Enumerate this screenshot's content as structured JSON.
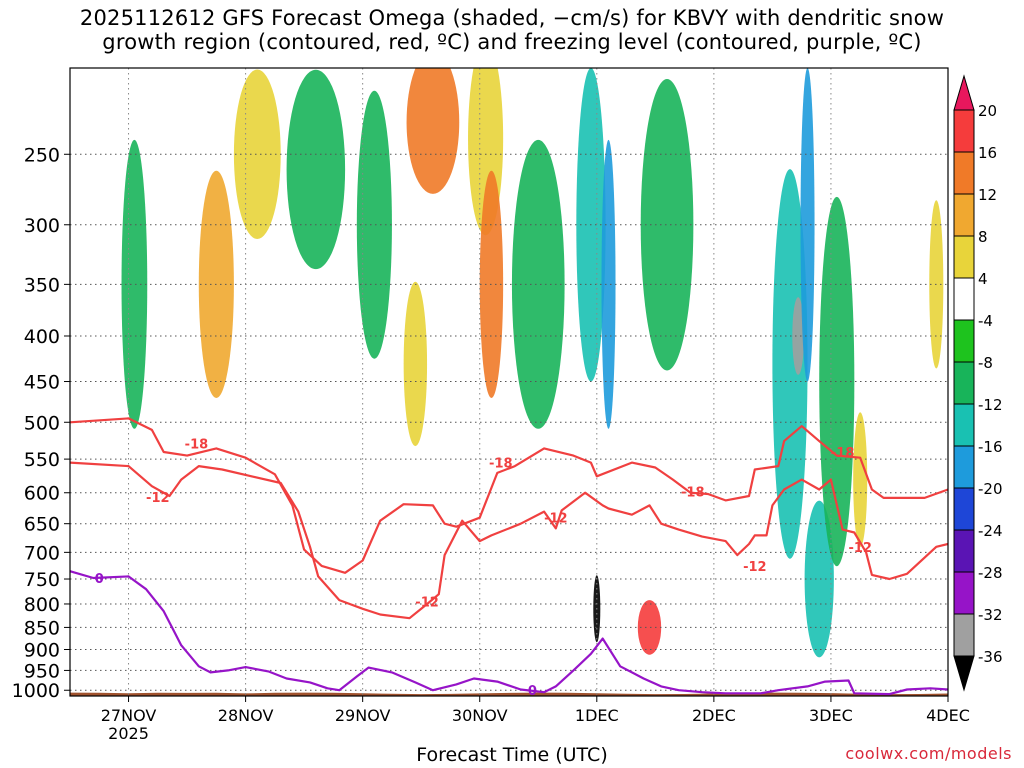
{
  "title_line1": "2025112612 GFS Forecast Omega (shaded, −cm/s) for KBVY with dendritic snow",
  "title_line2": "growth region (contoured, red, ºC) and freezing level (contoured, purple, ºC)",
  "credit": "coolwx.com/models",
  "chart_data": {
    "type": "heatmap",
    "title": "2025112612 GFS Forecast Omega (shaded, −cm/s) for KBVY with dendritic snow growth region (contoured, red, ºC) and freezing level (contoured, purple, ºC)",
    "xlabel": "Forecast Time (UTC)",
    "ylabel": "",
    "x_ticks": [
      "27NOV",
      "28NOV",
      "29NOV",
      "30NOV",
      "1DEC",
      "2DEC",
      "3DEC",
      "4DEC"
    ],
    "x_year_label": "2025",
    "xlim_days": [
      -0.5,
      7.0
    ],
    "y_ticks": [
      250,
      300,
      350,
      400,
      450,
      500,
      550,
      600,
      650,
      700,
      750,
      800,
      850,
      900,
      950,
      1000
    ],
    "ylim_hpa": [
      200,
      1015
    ],
    "y_scale": "pressure",
    "grid": true,
    "colorbar": {
      "tick_labels": [
        "20",
        "16",
        "12",
        "8",
        "4",
        "-4",
        "-8",
        "-12",
        "-16",
        "-20",
        "-24",
        "-28",
        "-32",
        "-36"
      ],
      "colors": [
        "#e8175d",
        "#f53c3c",
        "#f07a28",
        "#f0a830",
        "#e8d43a",
        "#ffffff",
        "#1ec31e",
        "#18b45a",
        "#19c1b2",
        "#1e9bdc",
        "#1e46d7",
        "#5a14b4",
        "#9614c8",
        "#a0a0a0",
        "#000000"
      ]
    },
    "omega_features": [
      {
        "day": 0.05,
        "p": 350,
        "value": -8,
        "width": 0.22,
        "height": 250
      },
      {
        "day": 0.75,
        "p": 350,
        "value": 8,
        "width": 0.3,
        "height": 200
      },
      {
        "day": 1.1,
        "p": 250,
        "value": 4,
        "width": 0.4,
        "height": 120
      },
      {
        "day": 1.6,
        "p": 260,
        "value": -8,
        "width": 0.5,
        "height": 150
      },
      {
        "day": 2.1,
        "p": 300,
        "value": -8,
        "width": 0.3,
        "height": 200
      },
      {
        "day": 2.45,
        "p": 430,
        "value": 4,
        "width": 0.2,
        "height": 180
      },
      {
        "day": 2.6,
        "p": 230,
        "value": 12,
        "width": 0.45,
        "height": 120
      },
      {
        "day": 3.05,
        "p": 240,
        "value": 4,
        "width": 0.3,
        "height": 180
      },
      {
        "day": 3.1,
        "p": 350,
        "value": 12,
        "width": 0.2,
        "height": 200
      },
      {
        "day": 3.5,
        "p": 350,
        "value": -8,
        "width": 0.45,
        "height": 250
      },
      {
        "day": 3.95,
        "p": 300,
        "value": -12,
        "width": 0.25,
        "height": 300
      },
      {
        "day": 4.1,
        "p": 350,
        "value": -16,
        "width": 0.12,
        "height": 250
      },
      {
        "day": 4.0,
        "p": 810,
        "value": -36,
        "width": 0.06,
        "height": 140
      },
      {
        "day": 4.45,
        "p": 850,
        "value": 16,
        "width": 0.2,
        "height": 120
      },
      {
        "day": 4.6,
        "p": 300,
        "value": -8,
        "width": 0.45,
        "height": 250
      },
      {
        "day": 5.65,
        "p": 430,
        "value": -12,
        "width": 0.3,
        "height": 400
      },
      {
        "day": 5.72,
        "p": 400,
        "value": -32,
        "width": 0.1,
        "height": 80
      },
      {
        "day": 5.8,
        "p": 300,
        "value": -16,
        "width": 0.12,
        "height": 300
      },
      {
        "day": 5.9,
        "p": 750,
        "value": -12,
        "width": 0.25,
        "height": 300
      },
      {
        "day": 6.05,
        "p": 450,
        "value": -8,
        "width": 0.3,
        "height": 400
      },
      {
        "day": 6.9,
        "p": 350,
        "value": 4,
        "width": 0.12,
        "height": 150
      },
      {
        "day": 6.25,
        "p": 580,
        "value": 4,
        "width": 0.12,
        "height": 200
      }
    ],
    "series": [
      {
        "name": "-18",
        "color": "#f04040",
        "points": [
          [
            -0.5,
            500
          ],
          [
            0.0,
            495
          ],
          [
            0.2,
            510
          ],
          [
            0.3,
            540
          ],
          [
            0.5,
            545
          ],
          [
            0.75,
            535
          ],
          [
            1.0,
            548
          ],
          [
            1.25,
            572
          ],
          [
            1.4,
            620
          ],
          [
            1.5,
            695
          ],
          [
            1.65,
            725
          ],
          [
            1.85,
            738
          ],
          [
            2.0,
            715
          ],
          [
            2.15,
            645
          ],
          [
            2.35,
            618
          ],
          [
            2.6,
            620
          ],
          [
            2.7,
            650
          ],
          [
            2.8,
            655
          ],
          [
            3.0,
            640
          ],
          [
            3.15,
            570
          ],
          [
            3.3,
            560
          ],
          [
            3.55,
            535
          ],
          [
            3.8,
            545
          ],
          [
            3.95,
            555
          ],
          [
            4.0,
            575
          ],
          [
            4.3,
            555
          ],
          [
            4.5,
            562
          ],
          [
            4.65,
            580
          ],
          [
            4.8,
            600
          ],
          [
            4.95,
            602
          ],
          [
            5.1,
            612
          ],
          [
            5.3,
            605
          ],
          [
            5.35,
            565
          ],
          [
            5.55,
            560
          ],
          [
            5.6,
            525
          ],
          [
            5.75,
            505
          ],
          [
            5.9,
            525
          ],
          [
            6.05,
            545
          ],
          [
            6.25,
            548
          ],
          [
            6.35,
            595
          ],
          [
            6.45,
            608
          ],
          [
            6.8,
            608
          ],
          [
            7.0,
            595
          ]
        ],
        "label_positions": [
          [
            0.58,
            528
          ],
          [
            3.18,
            555
          ],
          [
            4.82,
            598
          ],
          [
            6.1,
            540
          ]
        ]
      },
      {
        "name": "-12",
        "color": "#f04040",
        "points": [
          [
            -0.5,
            555
          ],
          [
            0.0,
            560
          ],
          [
            0.2,
            590
          ],
          [
            0.35,
            605
          ],
          [
            0.45,
            580
          ],
          [
            0.6,
            560
          ],
          [
            0.8,
            565
          ],
          [
            1.05,
            575
          ],
          [
            1.3,
            585
          ],
          [
            1.45,
            630
          ],
          [
            1.55,
            690
          ],
          [
            1.62,
            745
          ],
          [
            1.8,
            792
          ],
          [
            2.0,
            810
          ],
          [
            2.15,
            822
          ],
          [
            2.4,
            830
          ],
          [
            2.55,
            800
          ],
          [
            2.65,
            780
          ],
          [
            2.7,
            705
          ],
          [
            2.85,
            645
          ],
          [
            3.0,
            680
          ],
          [
            3.1,
            670
          ],
          [
            3.35,
            650
          ],
          [
            3.55,
            630
          ],
          [
            3.65,
            658
          ],
          [
            3.7,
            628
          ],
          [
            3.9,
            600
          ],
          [
            4.05,
            620
          ],
          [
            4.1,
            625
          ],
          [
            4.3,
            635
          ],
          [
            4.45,
            620
          ],
          [
            4.55,
            650
          ],
          [
            4.7,
            660
          ],
          [
            4.9,
            672
          ],
          [
            5.1,
            680
          ],
          [
            5.2,
            705
          ],
          [
            5.3,
            685
          ],
          [
            5.35,
            670
          ],
          [
            5.45,
            670
          ],
          [
            5.5,
            620
          ],
          [
            5.6,
            595
          ],
          [
            5.75,
            580
          ],
          [
            5.9,
            595
          ],
          [
            6.0,
            580
          ],
          [
            6.1,
            660
          ],
          [
            6.2,
            665
          ],
          [
            6.3,
            700
          ],
          [
            6.35,
            742
          ],
          [
            6.5,
            750
          ],
          [
            6.65,
            740
          ],
          [
            6.9,
            690
          ],
          [
            7.0,
            685
          ]
        ],
        "label_positions": [
          [
            0.25,
            607
          ],
          [
            2.55,
            795
          ],
          [
            3.65,
            640
          ],
          [
            5.35,
            725
          ],
          [
            6.25,
            690
          ]
        ]
      },
      {
        "name": "0",
        "color": "#9614c8",
        "points": [
          [
            -0.5,
            735
          ],
          [
            -0.3,
            748
          ],
          [
            0.0,
            745
          ],
          [
            0.15,
            770
          ],
          [
            0.3,
            815
          ],
          [
            0.45,
            890
          ],
          [
            0.6,
            940
          ],
          [
            0.7,
            955
          ],
          [
            0.85,
            950
          ],
          [
            1.0,
            942
          ],
          [
            1.2,
            953
          ],
          [
            1.35,
            970
          ],
          [
            1.55,
            980
          ],
          [
            1.7,
            995
          ],
          [
            1.8,
            1000
          ],
          [
            1.95,
            965
          ],
          [
            2.05,
            943
          ],
          [
            2.25,
            955
          ],
          [
            2.45,
            980
          ],
          [
            2.6,
            1000
          ],
          [
            2.8,
            985
          ],
          [
            2.95,
            970
          ],
          [
            3.15,
            978
          ],
          [
            3.35,
            998
          ],
          [
            3.55,
            1005
          ],
          [
            3.65,
            990
          ],
          [
            3.8,
            950
          ],
          [
            3.95,
            910
          ],
          [
            4.05,
            875
          ],
          [
            4.2,
            940
          ],
          [
            4.4,
            970
          ],
          [
            4.55,
            990
          ],
          [
            4.7,
            1000
          ],
          [
            4.9,
            1005
          ],
          [
            5.1,
            1008
          ],
          [
            5.4,
            1008
          ],
          [
            5.55,
            1000
          ],
          [
            5.8,
            990
          ],
          [
            5.95,
            978
          ],
          [
            6.15,
            975
          ],
          [
            6.2,
            1008
          ],
          [
            6.5,
            1010
          ],
          [
            6.65,
            998
          ],
          [
            6.85,
            995
          ],
          [
            7.0,
            998
          ]
        ],
        "label_positions": [
          [
            -0.25,
            748
          ],
          [
            3.45,
            1000
          ]
        ]
      }
    ]
  }
}
